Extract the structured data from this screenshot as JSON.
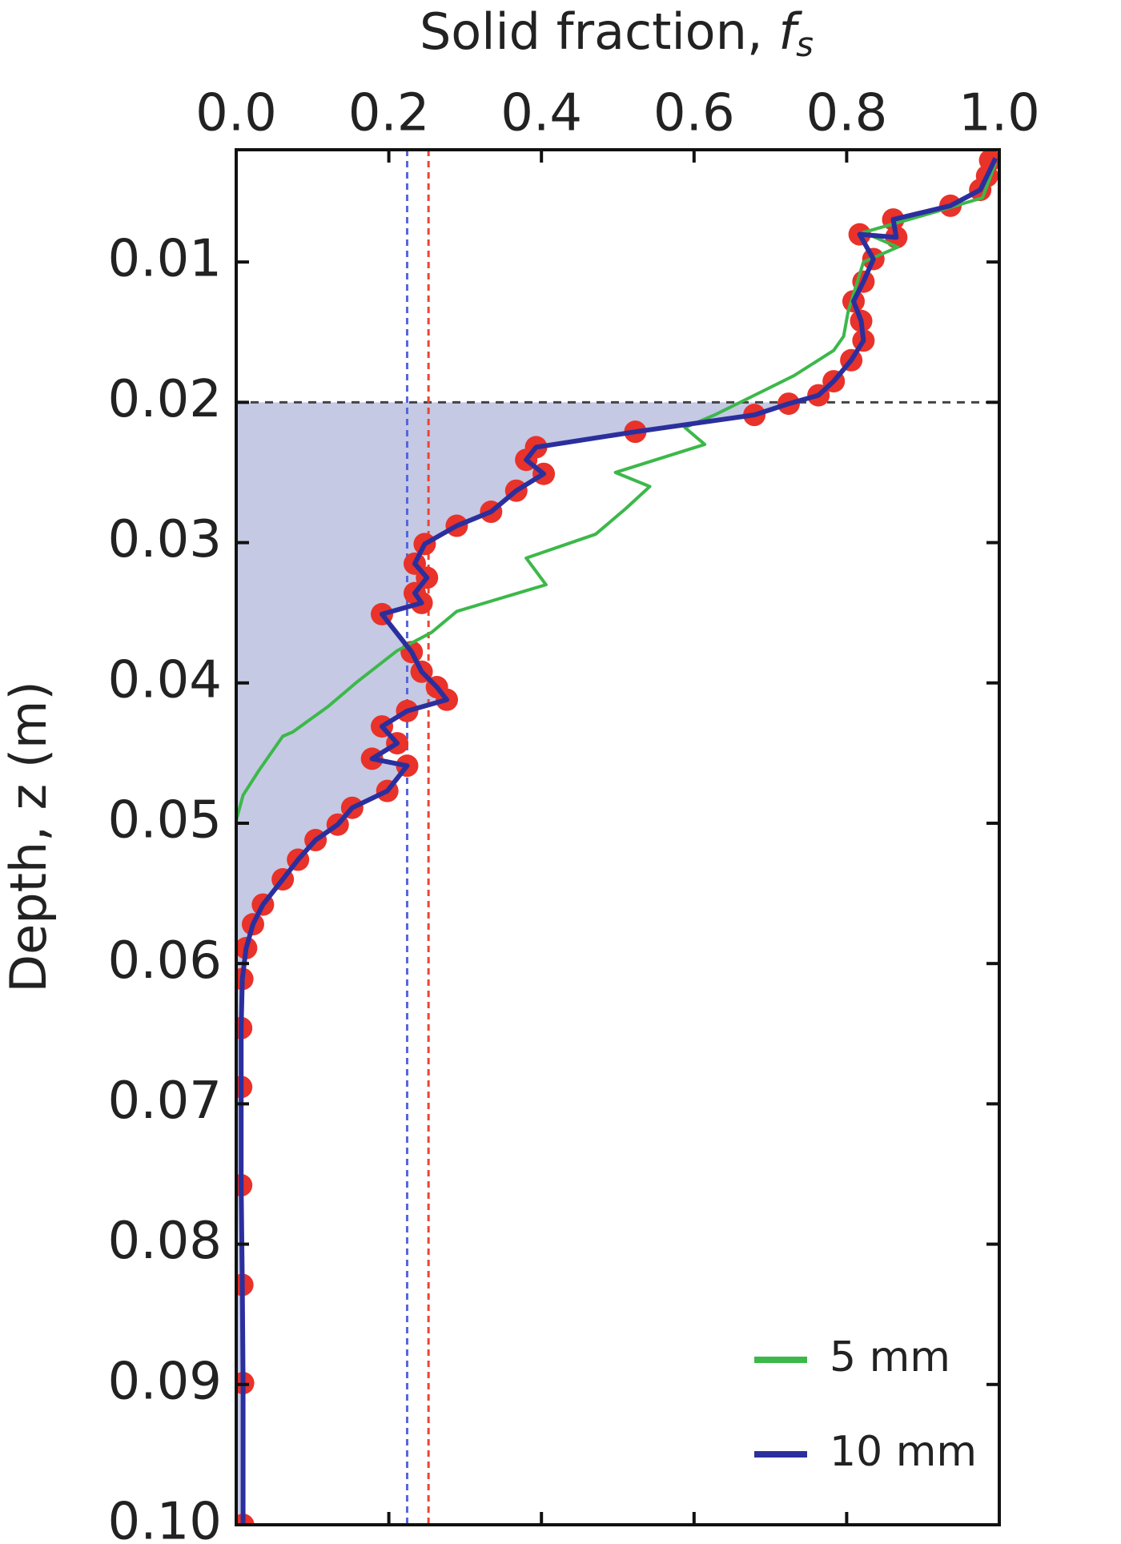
{
  "chart_data": {
    "type": "profile",
    "title": "Solid fraction, ",
    "title_symbol": "f",
    "title_subscript": "s",
    "y_label": "Depth, z (m)",
    "xlim": [
      0,
      1
    ],
    "xticks": [
      {
        "value": 0,
        "label": "0.0"
      },
      0.2,
      0.4,
      0.6,
      0.8,
      {
        "value": 1,
        "label": "1.0"
      }
    ],
    "ylim": [
      0.002,
      0.1
    ],
    "yticks": [
      0.01,
      0.02,
      0.03,
      0.04,
      0.05,
      0.06,
      0.07,
      0.08,
      0.09,
      {
        "value": 0.1,
        "label": "0.10"
      }
    ],
    "y_inverted": true,
    "hline": 0.02,
    "vlines": [
      {
        "value": 0.224,
        "color": "#5566dd"
      },
      {
        "value": 0.252,
        "color": "#ee4433"
      }
    ],
    "fill_color": "#c5c9e3",
    "legend_position": "lower right",
    "series": [
      {
        "kind": "points",
        "color": "#e8322a",
        "x": [
          0.988,
          0.984,
          0.975,
          0.936,
          0.861,
          0.865,
          0.817,
          0.835,
          0.822,
          0.809,
          0.819,
          0.822,
          0.806,
          0.783,
          0.763,
          0.724,
          0.679,
          0.523,
          0.393,
          0.38,
          0.403,
          0.367,
          0.334,
          0.289,
          0.247,
          0.234,
          0.25,
          0.234,
          0.243,
          0.191,
          0.23,
          0.243,
          0.263,
          0.276,
          0.224,
          0.191,
          0.211,
          0.178,
          0.224,
          0.198,
          0.152,
          0.133,
          0.104,
          0.081,
          0.061,
          0.035,
          0.022,
          0.013,
          0.008,
          0.0065,
          0.0065,
          0.0065,
          0.008,
          0.009,
          0.009
        ],
        "y": [
          0.00275,
          0.00387,
          0.00486,
          0.00599,
          0.00697,
          0.00824,
          0.00803,
          0.00979,
          0.0114,
          0.0128,
          0.0142,
          0.0156,
          0.017,
          0.0185,
          0.0195,
          0.0201,
          0.0209,
          0.0221,
          0.0232,
          0.0241,
          0.0251,
          0.0263,
          0.0278,
          0.0288,
          0.0301,
          0.0315,
          0.0325,
          0.0336,
          0.0343,
          0.0351,
          0.0378,
          0.0392,
          0.0403,
          0.0412,
          0.042,
          0.0431,
          0.0443,
          0.0454,
          0.0459,
          0.0477,
          0.0489,
          0.0501,
          0.0512,
          0.0526,
          0.054,
          0.0558,
          0.0572,
          0.0589,
          0.0611,
          0.0646,
          0.0688,
          0.0758,
          0.0829,
          0.0899,
          0.1
        ]
      },
      {
        "kind": "line",
        "name": "5 mm",
        "color": "#3cb84a",
        "x": [
          0.995,
          0.978,
          0.913,
          0.822,
          0.867,
          0.822,
          0.802,
          0.796,
          0.783,
          0.731,
          0.679,
          0.627,
          0.588,
          0.614,
          0.497,
          0.542,
          0.51,
          0.471,
          0.38,
          0.406,
          0.289,
          0.256,
          0.211,
          0.159,
          0.12,
          0.074,
          0.061,
          0.029,
          0.009,
          0
        ],
        "y": [
          0.00296,
          0.00542,
          0.00648,
          0.00789,
          0.00894,
          0.01,
          0.0135,
          0.0153,
          0.0163,
          0.0181,
          0.0195,
          0.0209,
          0.0218,
          0.023,
          0.025,
          0.026,
          0.0276,
          0.0294,
          0.0311,
          0.033,
          0.0349,
          0.0364,
          0.0377,
          0.0399,
          0.0417,
          0.0435,
          0.0438,
          0.0463,
          0.048,
          0.0498
        ]
      },
      {
        "kind": "line",
        "name": "10 mm",
        "color": "#2b2f9e",
        "filled_below": true,
        "x": [
          0.995,
          0.984,
          0.975,
          0.936,
          0.861,
          0.865,
          0.817,
          0.835,
          0.822,
          0.809,
          0.819,
          0.822,
          0.806,
          0.783,
          0.763,
          0.724,
          0.679,
          0.523,
          0.393,
          0.38,
          0.403,
          0.367,
          0.334,
          0.289,
          0.247,
          0.234,
          0.25,
          0.234,
          0.243,
          0.191,
          0.23,
          0.243,
          0.263,
          0.276,
          0.224,
          0.191,
          0.211,
          0.178,
          0.224,
          0.198,
          0.152,
          0.133,
          0.104,
          0.081,
          0.061,
          0.035,
          0.022,
          0.013,
          0.008,
          0.0065,
          0.0065,
          0.0065,
          0.008,
          0.009,
          0.009
        ],
        "y": [
          0.0026,
          0.00387,
          0.00486,
          0.00599,
          0.00697,
          0.00824,
          0.00803,
          0.00979,
          0.0114,
          0.0128,
          0.0142,
          0.0156,
          0.017,
          0.0185,
          0.0195,
          0.0201,
          0.0209,
          0.0221,
          0.0232,
          0.0241,
          0.0251,
          0.0263,
          0.0278,
          0.0288,
          0.0301,
          0.0315,
          0.0325,
          0.0336,
          0.0343,
          0.0351,
          0.0378,
          0.0392,
          0.0403,
          0.0412,
          0.042,
          0.0431,
          0.0443,
          0.0454,
          0.0459,
          0.0477,
          0.0489,
          0.0501,
          0.0512,
          0.0526,
          0.054,
          0.0558,
          0.0572,
          0.0589,
          0.0611,
          0.0646,
          0.0688,
          0.0758,
          0.0829,
          0.0899,
          0.1
        ]
      }
    ]
  }
}
